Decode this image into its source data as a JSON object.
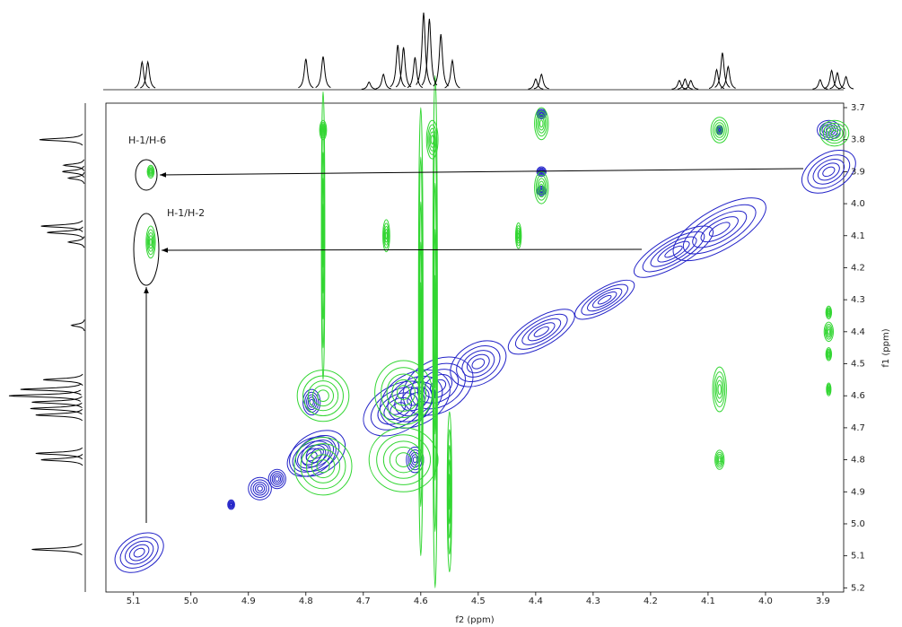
{
  "chart_data": {
    "type": "contour",
    "xlabel": "f2 (ppm)",
    "ylabel": "f1 (ppm)",
    "xlim": [
      5.148,
      3.864
    ],
    "ylim": [
      3.686,
      5.213
    ],
    "xticks": [
      5.1,
      {
        "value": 5.0,
        "label": "5.0"
      },
      4.9,
      4.8,
      4.7,
      4.6,
      4.5,
      4.4,
      4.3,
      4.2,
      4.1,
      {
        "value": 4.0,
        "label": "4.0"
      },
      3.9
    ],
    "yticks": [
      3.7,
      3.8,
      3.9,
      {
        "value": 4.0,
        "label": "4.0"
      },
      4.1,
      4.2,
      4.3,
      4.4,
      4.5,
      4.6,
      4.7,
      4.8,
      4.9,
      {
        "value": 5.0,
        "label": "5.0"
      },
      5.1,
      5.2
    ],
    "annotations": [
      "H-1/H-6",
      "H-1/H-2"
    ],
    "series": [
      {
        "color": "#2323c8",
        "x": [
          5.09,
          4.88,
          4.85,
          4.79,
          4.78,
          4.64,
          4.61,
          4.57,
          4.5,
          4.39,
          4.28,
          4.16,
          4.08,
          3.89,
          4.79,
          4.61,
          4.39,
          4.39,
          4.39,
          3.89,
          4.08,
          4.93
        ],
        "y": [
          5.09,
          4.89,
          4.86,
          4.79,
          4.78,
          4.64,
          4.61,
          4.57,
          4.5,
          4.4,
          4.3,
          4.15,
          4.08,
          3.9,
          4.62,
          4.8,
          3.72,
          3.9,
          3.96,
          3.77,
          3.77,
          4.94
        ],
        "rx": [
          0.035,
          0.02,
          0.015,
          0.035,
          0.04,
          0.05,
          0.05,
          0.05,
          0.04,
          0.05,
          0.045,
          0.06,
          0.07,
          0.035,
          0.015,
          0.015,
          0.008,
          0.008,
          0.008,
          0.02,
          0.006,
          0.006
        ],
        "ry": [
          0.06,
          0.035,
          0.03,
          0.06,
          0.07,
          0.08,
          0.09,
          0.09,
          0.07,
          0.05,
          0.04,
          0.05,
          0.07,
          0.07,
          0.04,
          0.04,
          0.015,
          0.015,
          0.015,
          0.03,
          0.012,
          0.015
        ]
      },
      {
        "color": "#33d633",
        "x": [
          5.07,
          5.07,
          4.77,
          4.77,
          4.77,
          4.63,
          4.63,
          4.39,
          4.39,
          4.08,
          4.08,
          4.08,
          3.89,
          3.89,
          3.89,
          3.89,
          3.88,
          4.58,
          4.66,
          4.43,
          4.77,
          4.6,
          4.575,
          4.55
        ],
        "y": [
          3.9,
          4.12,
          3.77,
          4.6,
          4.82,
          4.59,
          4.8,
          3.75,
          3.95,
          4.58,
          4.8,
          3.77,
          4.4,
          4.34,
          4.47,
          4.58,
          3.78,
          3.8,
          4.1,
          4.1,
          4.1,
          4.4,
          4.4,
          4.9
        ],
        "rx": [
          0.006,
          0.008,
          0.006,
          0.045,
          0.05,
          0.05,
          0.06,
          0.012,
          0.012,
          0.012,
          0.008,
          0.015,
          0.008,
          0.005,
          0.005,
          0.004,
          0.025,
          0.01,
          0.006,
          0.005,
          0.003,
          0.004,
          0.004,
          0.004
        ],
        "ry": [
          0.02,
          0.05,
          0.03,
          0.08,
          0.09,
          0.1,
          0.1,
          0.05,
          0.05,
          0.07,
          0.03,
          0.04,
          0.03,
          0.02,
          0.02,
          0.02,
          0.04,
          0.06,
          0.05,
          0.04,
          0.45,
          0.7,
          0.8,
          0.25
        ]
      }
    ],
    "top_projection": {
      "x": [
        5.085,
        5.075,
        4.8,
        4.77,
        4.69,
        4.665,
        4.64,
        4.63,
        4.61,
        4.595,
        4.585,
        4.565,
        4.545,
        4.4,
        4.39,
        4.15,
        4.14,
        4.13,
        4.085,
        4.075,
        4.065,
        3.905,
        3.885,
        3.875,
        3.86
      ],
      "values": [
        36,
        36,
        40,
        43,
        10,
        20,
        58,
        55,
        42,
        100,
        92,
        72,
        38,
        14,
        20,
        12,
        14,
        12,
        26,
        48,
        30,
        13,
        25,
        22,
        17
      ]
    },
    "left_projection": {
      "y": [
        3.8,
        3.88,
        3.9,
        3.92,
        4.07,
        4.09,
        4.12,
        4.38,
        4.55,
        4.58,
        4.6,
        4.62,
        4.64,
        4.66,
        4.78,
        4.8,
        5.08
      ],
      "values": [
        60,
        28,
        30,
        22,
        58,
        50,
        22,
        18,
        55,
        85,
        100,
        70,
        72,
        65,
        65,
        58,
        70
      ]
    }
  }
}
